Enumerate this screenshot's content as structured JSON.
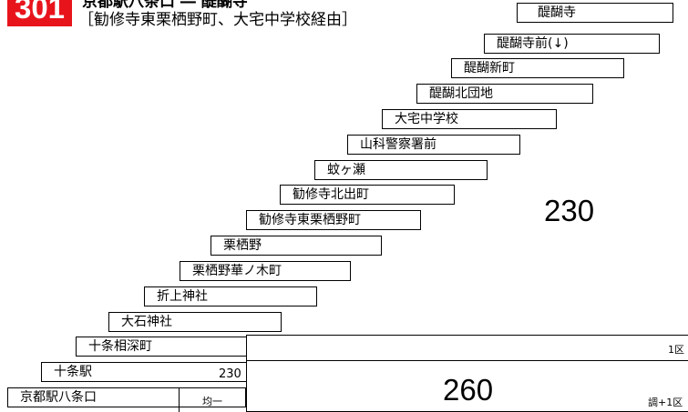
{
  "route": {
    "number": "301",
    "title": "京都駅八条口 ― 醍醐寺",
    "via": "［勧修寺東栗栖野町、大宅中学校経由］",
    "badge_color": "#e8141c"
  },
  "stops": [
    "醍醐寺",
    "醍醐寺前(↓)",
    "醍醐新町",
    "醍醐北団地",
    "大宅中学校",
    "山科警察署前",
    "蚊ヶ瀬",
    "勧修寺北出町",
    "勧修寺東栗栖野町",
    "栗栖野",
    "栗栖野華ノ木町",
    "折上神社",
    "大石神社",
    "十条相深町",
    "十条駅",
    "京都駅八条口"
  ],
  "fares": {
    "upper_zone_fare": "230",
    "lower_zone_fare": "260",
    "jujo_fare": "230",
    "hachijo_fare": "均一"
  },
  "zones": {
    "upper": "1区",
    "lower": "調+1区"
  }
}
